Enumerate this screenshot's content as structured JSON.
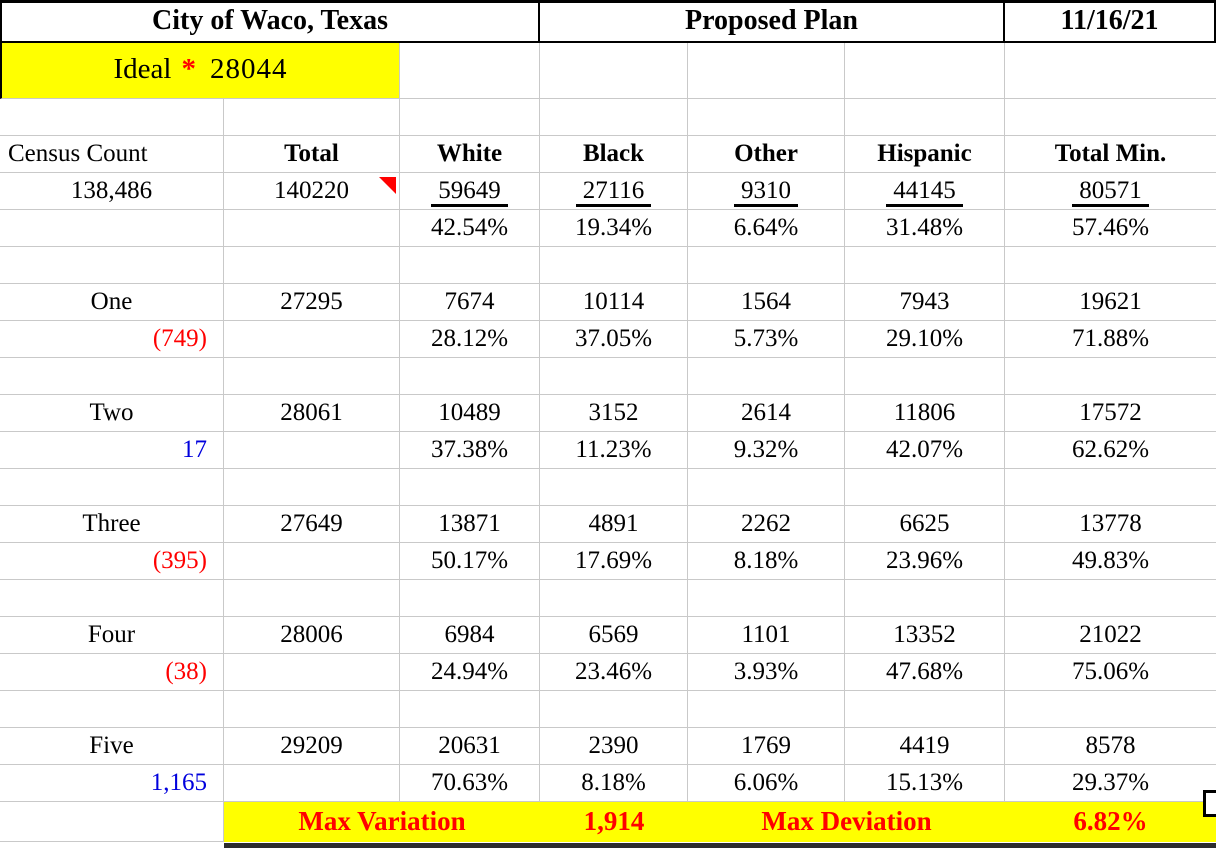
{
  "header": {
    "title": "City of Waco, Texas",
    "plan_title": "Proposed Plan",
    "date": "11/16/21"
  },
  "ideal": {
    "label": "Ideal",
    "asterisk": "*",
    "value": "28044"
  },
  "columns": [
    "Census Count",
    "Total",
    "White",
    "Black",
    "Other",
    "Hispanic",
    "Total Min."
  ],
  "citywide": {
    "census_count": "138,486",
    "total": "140220",
    "values": [
      "59649",
      "27116",
      "9310",
      "44145",
      "80571"
    ],
    "percents": [
      "42.54%",
      "19.34%",
      "6.64%",
      "31.48%",
      "57.46%"
    ]
  },
  "districts": [
    {
      "name": "One",
      "deviation": "(749)",
      "total": "27295",
      "values": [
        "7674",
        "10114",
        "1564",
        "7943",
        "19621"
      ],
      "percents": [
        "28.12%",
        "37.05%",
        "5.73%",
        "29.10%",
        "71.88%"
      ]
    },
    {
      "name": "Two",
      "deviation": "17",
      "total": "28061",
      "values": [
        "10489",
        "3152",
        "2614",
        "11806",
        "17572"
      ],
      "percents": [
        "37.38%",
        "11.23%",
        "9.32%",
        "42.07%",
        "62.62%"
      ]
    },
    {
      "name": "Three",
      "deviation": "(395)",
      "total": "27649",
      "values": [
        "13871",
        "4891",
        "2262",
        "6625",
        "13778"
      ],
      "percents": [
        "50.17%",
        "17.69%",
        "8.18%",
        "23.96%",
        "49.83%"
      ]
    },
    {
      "name": "Four",
      "deviation": "(38)",
      "total": "28006",
      "values": [
        "6984",
        "6569",
        "1101",
        "13352",
        "21022"
      ],
      "percents": [
        "24.94%",
        "23.46%",
        "3.93%",
        "47.68%",
        "75.06%"
      ]
    },
    {
      "name": "Five",
      "deviation": "1,165",
      "total": "29209",
      "values": [
        "20631",
        "2390",
        "1769",
        "4419",
        "8578"
      ],
      "percents": [
        "70.63%",
        "8.18%",
        "6.06%",
        "15.13%",
        "29.37%"
      ]
    }
  ],
  "footer": {
    "max_variation_label": "Max Variation",
    "max_variation_value": "1,914",
    "max_deviation_label": "Max Deviation",
    "max_deviation_value": "6.82%"
  },
  "icons": {
    "comment_indicator": "red-corner-triangle"
  },
  "colors": {
    "highlight_yellow": "#ffff00",
    "negative_red": "#ff0000",
    "positive_blue": "#0000dd",
    "footer_red": "#ff0000",
    "gridline": "#c9c9c9"
  }
}
